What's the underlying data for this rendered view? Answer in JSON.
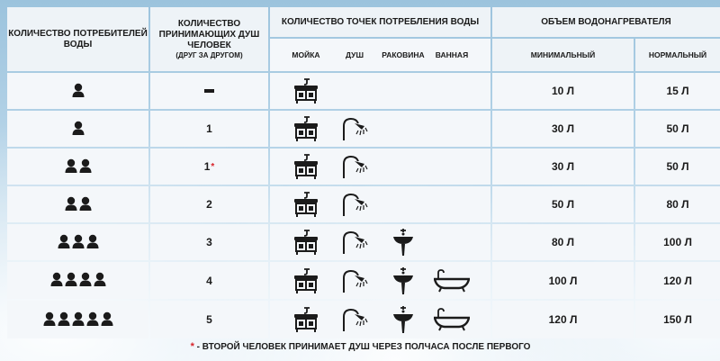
{
  "header": {
    "consumers": "КОЛИЧЕСТВО ПОТРЕБИТЕЛЕЙ ВОДЫ",
    "shower_people": "КОЛИЧЕСТВО ПРИНИМАЮЩИХ ДУШ ЧЕЛОВЕК",
    "shower_people_sub": "(ДРУГ ЗА ДРУГОМ)",
    "points": "КОЛИЧЕСТВО ТОЧЕК ПОТРЕБЛЕНИЯ ВОДЫ",
    "volume": "ОБЪЕМ ВОДОНАГРЕВАТЕЛЯ",
    "point_labels": [
      "МОЙКА",
      "ДУШ",
      "РАКОВИНА",
      "ВАННАЯ"
    ],
    "min": "МИНИМАЛЬНЫЙ",
    "normal": "НОРМАЛЬНЫЙ"
  },
  "rows": [
    {
      "people": 1,
      "shower": "–",
      "star": false,
      "points": [
        "sink-icon"
      ],
      "min": "10 Л",
      "normal": "15 Л"
    },
    {
      "people": 1,
      "shower": "1",
      "star": false,
      "points": [
        "sink-icon",
        "shower-icon"
      ],
      "min": "30 Л",
      "normal": "50 Л"
    },
    {
      "people": 2,
      "shower": "1",
      "star": true,
      "points": [
        "sink-icon",
        "shower-icon"
      ],
      "min": "30 Л",
      "normal": "50 Л"
    },
    {
      "people": 2,
      "shower": "2",
      "star": false,
      "points": [
        "sink-icon",
        "shower-icon"
      ],
      "min": "50 Л",
      "normal": "80 Л"
    },
    {
      "people": 3,
      "shower": "3",
      "star": false,
      "points": [
        "sink-icon",
        "shower-icon",
        "washbasin-icon"
      ],
      "min": "80 Л",
      "normal": "100 Л"
    },
    {
      "people": 4,
      "shower": "4",
      "star": false,
      "points": [
        "sink-icon",
        "shower-icon",
        "washbasin-icon",
        "bathtub-icon"
      ],
      "min": "100 Л",
      "normal": "120 Л"
    },
    {
      "people": 5,
      "shower": "5",
      "star": false,
      "points": [
        "sink-icon",
        "shower-icon",
        "washbasin-icon",
        "bathtub-icon"
      ],
      "min": "120 Л",
      "normal": "150 Л"
    }
  ],
  "footnote": {
    "star": "*",
    "text": "- ВТОРОЙ ЧЕЛОВЕК ПРИНИМАЕТ ДУШ ЧЕРЕЗ ПОЛЧАСА ПОСЛЕ ПЕРВОГО"
  },
  "colors": {
    "star": "#d8232a",
    "text": "#1b1b1b"
  }
}
